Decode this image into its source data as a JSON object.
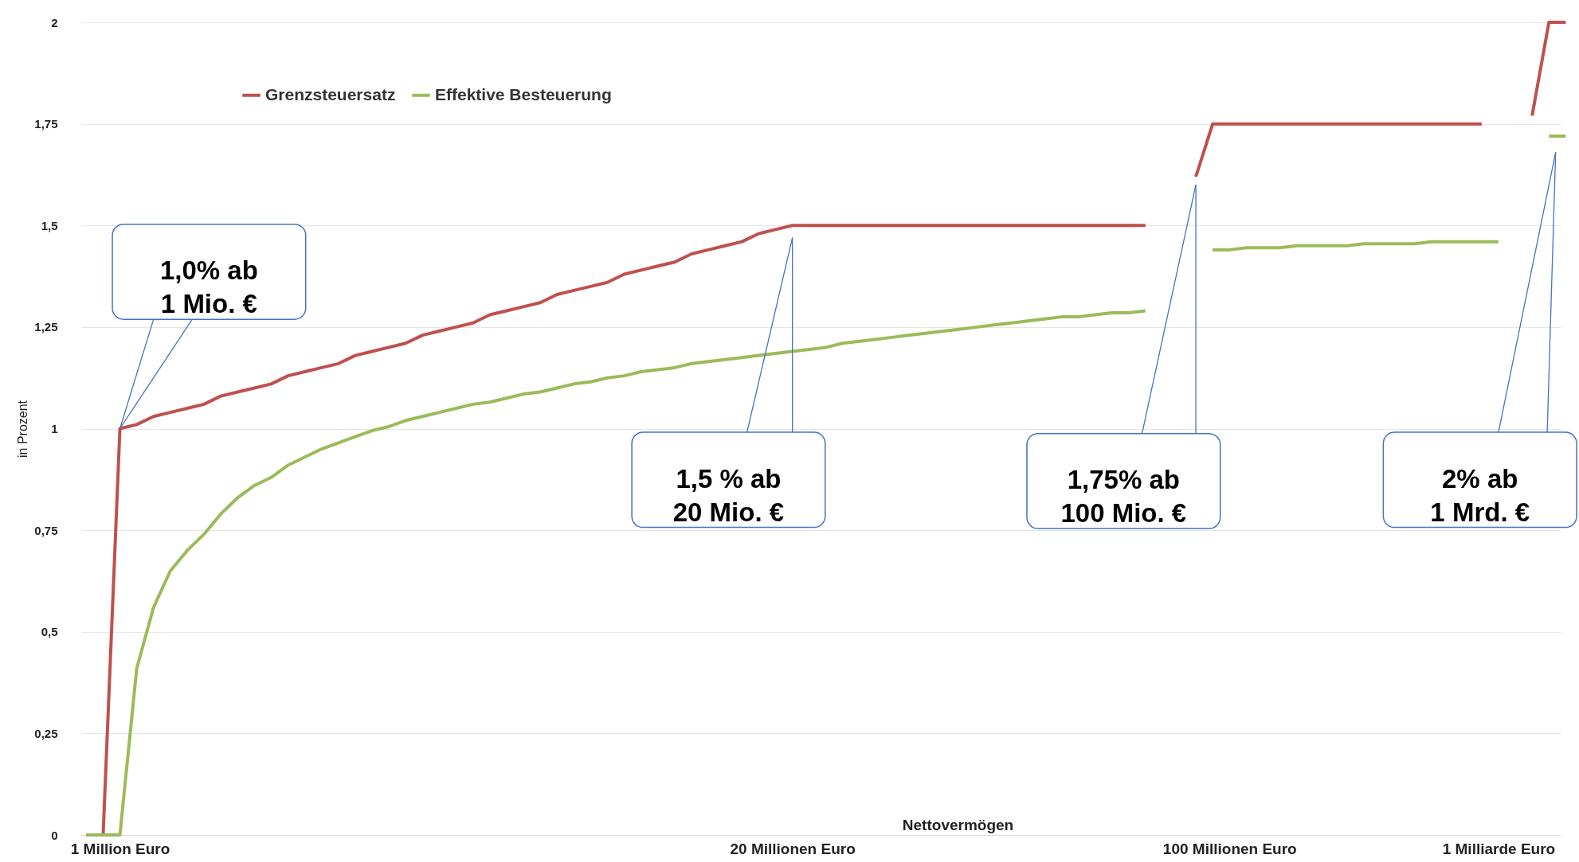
{
  "chart_data": {
    "type": "line",
    "xlabel": "Nettovermögen",
    "ylabel": "in Prozent",
    "categories": [
      null,
      null,
      "1 Million Euro",
      null,
      null,
      null,
      null,
      null,
      null,
      null,
      null,
      null,
      null,
      null,
      null,
      null,
      null,
      null,
      null,
      null,
      null,
      null,
      null,
      null,
      null,
      null,
      null,
      null,
      null,
      null,
      null,
      null,
      null,
      null,
      null,
      null,
      null,
      null,
      null,
      null,
      null,
      null,
      "20 Millionen Euro",
      null,
      null,
      null,
      null,
      null,
      null,
      null,
      null,
      null,
      null,
      null,
      null,
      null,
      null,
      null,
      null,
      null,
      null,
      null,
      null,
      null,
      null,
      null,
      null,
      null,
      "100 Millionen Euro",
      null,
      null,
      null,
      null,
      null,
      null,
      null,
      null,
      null,
      null,
      null,
      null,
      null,
      null,
      null,
      "1 Milliarde Euro",
      null,
      null,
      null,
      null
    ],
    "series": [
      {
        "name": "Grenzsteuersatz",
        "color": "#c0504d",
        "values": [
          0,
          0,
          1.0,
          1.01,
          1.03,
          1.04,
          1.05,
          1.06,
          1.08,
          1.09,
          1.1,
          1.11,
          1.13,
          1.14,
          1.15,
          1.16,
          1.18,
          1.19,
          1.2,
          1.21,
          1.23,
          1.24,
          1.25,
          1.26,
          1.28,
          1.29,
          1.3,
          1.31,
          1.33,
          1.34,
          1.35,
          1.36,
          1.38,
          1.39,
          1.4,
          1.41,
          1.43,
          1.44,
          1.45,
          1.46,
          1.48,
          1.49,
          1.5,
          1.5,
          1.5,
          1.5,
          1.5,
          1.5,
          1.5,
          1.5,
          1.5,
          1.5,
          1.5,
          1.5,
          1.5,
          1.5,
          1.5,
          1.5,
          1.5,
          1.5,
          1.5,
          1.5,
          1.5,
          1.5,
          null,
          null,
          1.62,
          1.75,
          1.75,
          1.75,
          1.75,
          1.75,
          1.75,
          1.75,
          1.75,
          1.75,
          1.75,
          1.75,
          1.75,
          1.75,
          1.75,
          1.75,
          1.75,
          1.75,
          null,
          null,
          1.77,
          2,
          2
        ]
      },
      {
        "name": "Effektive Besteuerung",
        "color": "#9bbb59",
        "values": [
          0,
          0,
          0,
          0.41,
          0.56,
          0.65,
          0.7,
          0.74,
          0.79,
          0.83,
          0.86,
          0.88,
          0.91,
          0.93,
          0.95,
          0.965,
          0.98,
          0.995,
          1.005,
          1.02,
          1.03,
          1.04,
          1.05,
          1.06,
          1.065,
          1.075,
          1.085,
          1.09,
          1.1,
          1.11,
          1.115,
          1.125,
          1.13,
          1.14,
          1.145,
          1.15,
          1.16,
          1.165,
          1.17,
          1.175,
          1.18,
          1.185,
          1.19,
          1.195,
          1.2,
          1.21,
          1.215,
          1.22,
          1.225,
          1.23,
          1.235,
          1.24,
          1.245,
          1.25,
          1.255,
          1.26,
          1.265,
          1.27,
          1.275,
          1.275,
          1.28,
          1.285,
          1.285,
          1.29,
          null,
          null,
          null,
          1.44,
          1.44,
          1.445,
          1.445,
          1.445,
          1.45,
          1.45,
          1.45,
          1.45,
          1.455,
          1.455,
          1.455,
          1.455,
          1.46,
          1.46,
          1.46,
          1.46,
          1.46,
          null,
          null,
          1.72,
          1.72
        ]
      }
    ],
    "ylim": [
      0,
      2
    ],
    "yticks": [
      0,
      {
        "value": 0.25,
        "label": "0,25"
      },
      {
        "value": 0.5,
        "label": "0,5"
      },
      {
        "value": 0.75,
        "label": "0,75"
      },
      1,
      {
        "value": 1.25,
        "label": "1,25"
      },
      {
        "value": 1.5,
        "label": "1,5"
      },
      {
        "value": 1.75,
        "label": "1,75"
      },
      2
    ],
    "grid": "y",
    "legend": "top left",
    "annotations": [
      {
        "text": "1,0% ab\n1 Mio. €",
        "x": "1 Million Euro",
        "y": 1
      },
      "1,5 %  ab\n20 Mio. €",
      "1,75% ab\n100 Mio. €",
      "2% ab\n1 Mrd. €"
    ]
  }
}
